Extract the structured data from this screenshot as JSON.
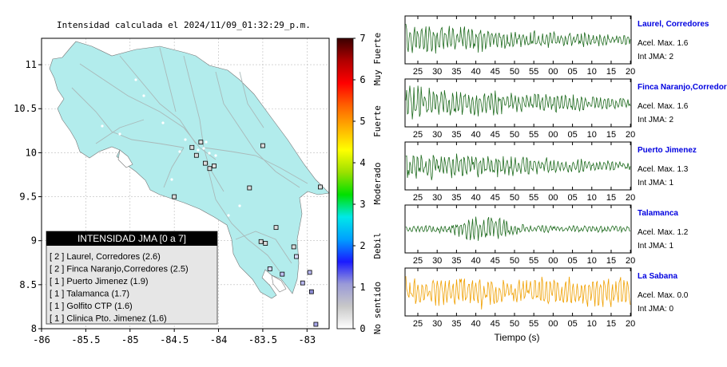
{
  "map": {
    "title": "Intensidad calculada el 2024/11/09_01:32:29_p.m.",
    "x_ticks": [
      "-86",
      "-85.5",
      "-85",
      "-84.5",
      "-84",
      "-83.5",
      "-83"
    ],
    "y_ticks": [
      "11",
      "10.5",
      "10",
      "9.5",
      "9",
      "8.5",
      "8"
    ],
    "xlim": [
      -86,
      -82.75
    ],
    "ylim": [
      8,
      11.3
    ],
    "land_color": "#b2ecec",
    "legend_title": "INTENSIDAD JMA [0 a 7]",
    "legend_items": [
      "[ 2 ]  Laurel, Corredores (2.6)",
      "[ 2 ]  Finca Naranjo,Corredores (2.5)",
      "[ 1 ]  Puerto Jimenez (1.9)",
      "[ 1 ]  Talamanca (1.7)",
      "[ 1 ]  Golfito CTP (1.6)",
      "[ 1 ]  Clinica Pto. Jimenez (1.6)"
    ],
    "stations": [
      {
        "lon": -82.95,
        "lat": 8.42,
        "color": "#8d8dd6"
      },
      {
        "lon": -83.05,
        "lat": 8.52,
        "color": "#b9b9f0"
      },
      {
        "lon": -83.28,
        "lat": 8.62,
        "color": "#c0c0f2"
      },
      {
        "lon": -83.42,
        "lat": 8.68,
        "color": "#d9d9f8"
      },
      {
        "lon": -82.9,
        "lat": 8.05,
        "color": "#a6a6e8"
      },
      {
        "lon": -82.97,
        "lat": 8.64,
        "color": "#b6b6ef"
      },
      {
        "lon": -83.12,
        "lat": 8.82,
        "color": "#d8d8f5"
      },
      {
        "lon": -83.15,
        "lat": 8.93,
        "color": "#dcdcdc"
      },
      {
        "lon": -83.35,
        "lat": 9.15,
        "color": "#dcdcdc"
      },
      {
        "lon": -83.47,
        "lat": 8.97,
        "color": "#dcdcdc"
      },
      {
        "lon": -83.52,
        "lat": 8.99,
        "color": "#dcdcdc"
      },
      {
        "lon": -82.85,
        "lat": 9.61,
        "color": "#dcdcdc"
      },
      {
        "lon": -83.65,
        "lat": 9.6,
        "color": "#dcdcdc"
      },
      {
        "lon": -84.15,
        "lat": 9.88,
        "color": "#dcdcdc"
      },
      {
        "lon": -84.1,
        "lat": 9.82,
        "color": "#dcdcdc"
      },
      {
        "lon": -84.05,
        "lat": 9.85,
        "color": "#dcdcdc"
      },
      {
        "lon": -84.3,
        "lat": 10.06,
        "color": "#dcdcdc"
      },
      {
        "lon": -84.2,
        "lat": 10.12,
        "color": "#dcdcdc"
      },
      {
        "lon": -84.25,
        "lat": 9.97,
        "color": "#dcdcdc"
      },
      {
        "lon": -83.5,
        "lat": 10.08,
        "color": "#dcdcdc"
      },
      {
        "lon": -84.5,
        "lat": 9.5,
        "color": "#dcdcdc"
      }
    ]
  },
  "colorbar": {
    "ticks": [
      "0",
      "1",
      "2",
      "3",
      "4",
      "5",
      "6",
      "7"
    ],
    "labels": [
      "No sentido",
      "Debil",
      "Moderado",
      "Fuerte",
      "Muy Fuerte"
    ],
    "colors": [
      "#ffffff",
      "#c8c8c8",
      "#9a9ad8",
      "#1a1aff",
      "#00a0ff",
      "#00e8e8",
      "#00e000",
      "#9be000",
      "#ffff00",
      "#ffb000",
      "#ff6000",
      "#ff0000",
      "#b00000",
      "#3a0000"
    ]
  },
  "waveforms": {
    "x_axis_label": "Tiempo (s)",
    "x_ticks": [
      "25",
      "30",
      "35",
      "40",
      "45",
      "50",
      "55",
      "00",
      "05",
      "10",
      "15",
      "20"
    ],
    "panels": [
      {
        "station": "Laurel, Corredores",
        "accel": "Acel. Max. 1.6",
        "intensity": "Int JMA: 2",
        "color": "#1e6b1e",
        "amp": 0.8
      },
      {
        "station": "Finca Naranjo,Corredores",
        "accel": "Acel. Max. 1.6",
        "intensity": "Int JMA: 2",
        "color": "#1e6b1e",
        "amp": 0.85
      },
      {
        "station": "Puerto Jimenez",
        "accel": "Acel. Max. 1.3",
        "intensity": "Int JMA: 1",
        "color": "#1e6b1e",
        "amp": 0.75
      },
      {
        "station": "Talamanca",
        "accel": "Acel. Max. 1.2",
        "intensity": "Int JMA: 1",
        "color": "#1e6b1e",
        "amp": 0.7
      },
      {
        "station": "La Sabana",
        "accel": "Acel. Max. 0.0",
        "intensity": "Int JMA: 0",
        "color": "#f0a000",
        "amp": 0.85
      }
    ]
  }
}
